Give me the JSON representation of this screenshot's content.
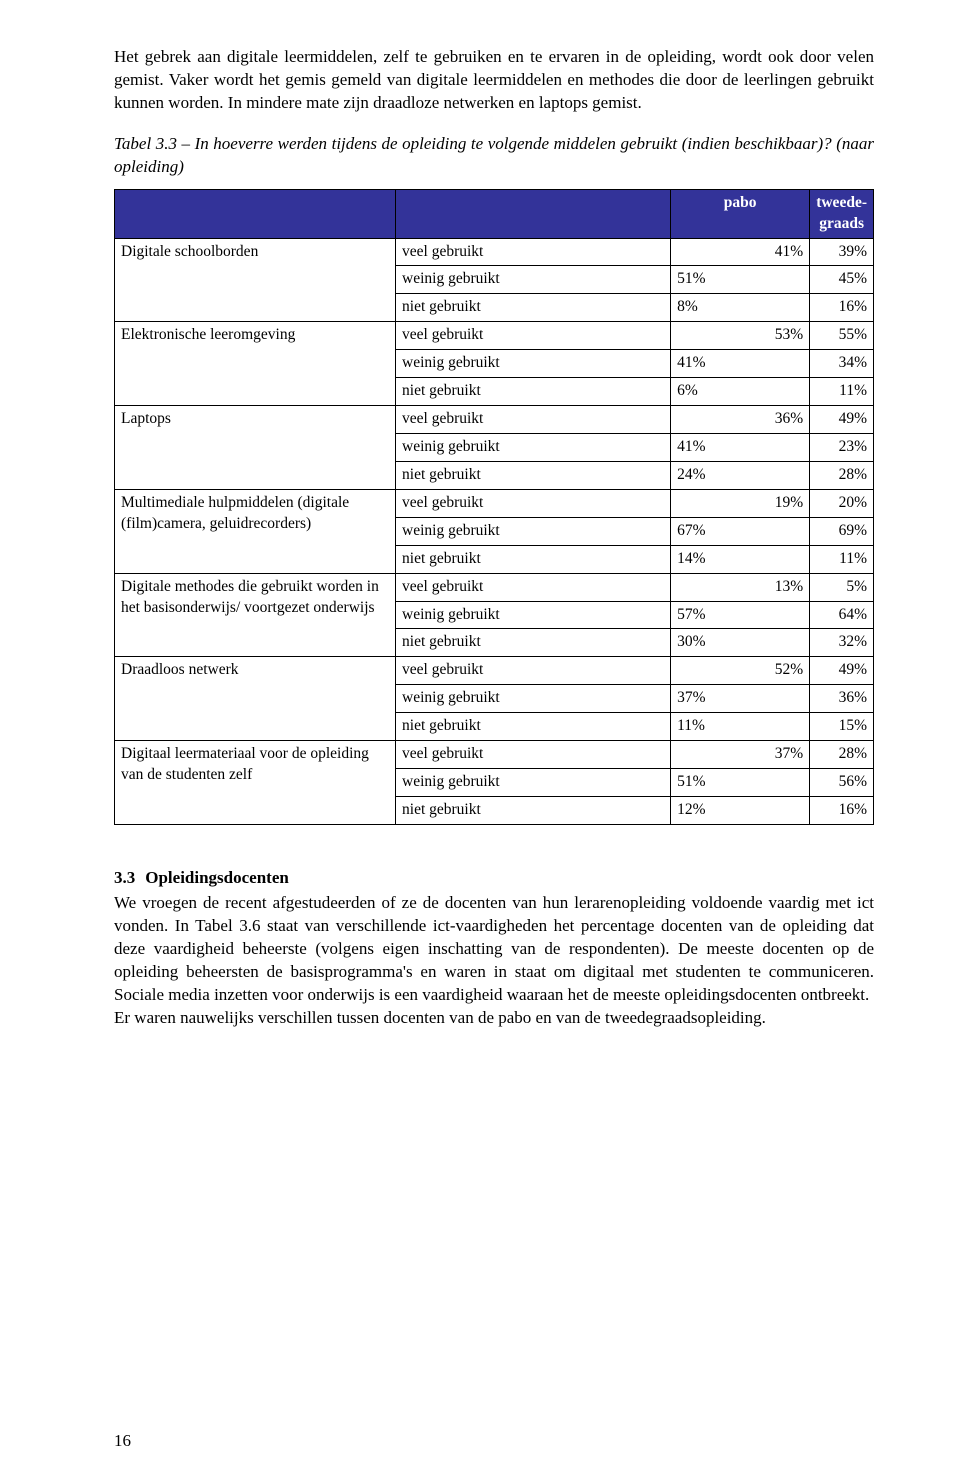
{
  "intro": {
    "p1": "Het gebrek aan digitale leermiddelen, zelf te gebruiken en te ervaren in de opleiding, wordt ook door velen gemist. Vaker wordt het gemis gemeld van digitale leermiddelen en methodes die door de leerlingen gebruikt kunnen worden. In mindere mate zijn draadloze netwerken en laptops gemist."
  },
  "table_caption": "Tabel 3.3 – In hoeverre werden tijdens de opleiding te volgende middelen gebruikt (indien beschikbaar)? (naar opleiding)",
  "table": {
    "header_bg": "#333399",
    "header_fg": "#ffffff",
    "columns": [
      "",
      "",
      "pabo",
      "tweede-graads"
    ],
    "groups": [
      {
        "label": "Digitale schoolborden",
        "rows": [
          {
            "usage": "veel gebruikt",
            "pabo": "41%",
            "tg": "39%"
          },
          {
            "usage": "weinig gebruikt",
            "pabo": "51%",
            "tg": "45%"
          },
          {
            "usage": "niet gebruikt",
            "pabo": "8%",
            "tg": "16%"
          }
        ]
      },
      {
        "label": "Elektronische leeromgeving",
        "rows": [
          {
            "usage": "veel gebruikt",
            "pabo": "53%",
            "tg": "55%"
          },
          {
            "usage": "weinig gebruikt",
            "pabo": "41%",
            "tg": "34%"
          },
          {
            "usage": "niet gebruikt",
            "pabo": "6%",
            "tg": "11%"
          }
        ]
      },
      {
        "label": "Laptops",
        "rows": [
          {
            "usage": "veel gebruikt",
            "pabo": "36%",
            "tg": "49%"
          },
          {
            "usage": "weinig gebruikt",
            "pabo": "41%",
            "tg": "23%"
          },
          {
            "usage": "niet gebruikt",
            "pabo": "24%",
            "tg": "28%"
          }
        ]
      },
      {
        "label": "Multimediale hulpmiddelen (digitale (film)camera, geluidrecorders)",
        "rows": [
          {
            "usage": "veel gebruikt",
            "pabo": "19%",
            "tg": "20%"
          },
          {
            "usage": "weinig gebruikt",
            "pabo": "67%",
            "tg": "69%"
          },
          {
            "usage": "niet gebruikt",
            "pabo": "14%",
            "tg": "11%"
          }
        ]
      },
      {
        "label": "Digitale methodes die gebruikt worden in het basisonderwijs/ voortgezet onderwijs",
        "rows": [
          {
            "usage": "veel gebruikt",
            "pabo": "13%",
            "tg": "5%"
          },
          {
            "usage": "weinig gebruikt",
            "pabo": "57%",
            "tg": "64%"
          },
          {
            "usage": "niet gebruikt",
            "pabo": "30%",
            "tg": "32%"
          }
        ]
      },
      {
        "label": "Draadloos netwerk",
        "rows": [
          {
            "usage": "veel gebruikt",
            "pabo": "52%",
            "tg": "49%"
          },
          {
            "usage": "weinig gebruikt",
            "pabo": "37%",
            "tg": "36%"
          },
          {
            "usage": "niet gebruikt",
            "pabo": "11%",
            "tg": "15%"
          }
        ]
      },
      {
        "label": "Digitaal leermateriaal voor de opleiding van de studenten zelf",
        "rows": [
          {
            "usage": "veel gebruikt",
            "pabo": "37%",
            "tg": "28%"
          },
          {
            "usage": "weinig gebruikt",
            "pabo": "51%",
            "tg": "56%"
          },
          {
            "usage": "niet gebruikt",
            "pabo": "12%",
            "tg": "16%"
          }
        ]
      }
    ]
  },
  "section": {
    "num": "3.3",
    "title": "Opleidingsdocenten",
    "body1": "We vroegen de recent afgestudeerden of ze de docenten van hun lerarenopleiding voldoende vaardig met ict vonden. In Tabel 3.6 staat van verschillende ict-vaardigheden het percentage docenten van de opleiding dat deze vaardigheid beheerste (volgens eigen inschatting van de respondenten). De meeste docenten op de opleiding beheersten de basisprogramma's en waren in staat om digitaal met studenten te communiceren. Sociale media inzetten voor onderwijs is een vaardigheid waaraan het de meeste opleidingsdocenten ontbreekt.",
    "body2": "Er waren nauwelijks verschillen tussen docenten van de pabo en van de tweedegraadsopleiding."
  },
  "page_number": "16"
}
